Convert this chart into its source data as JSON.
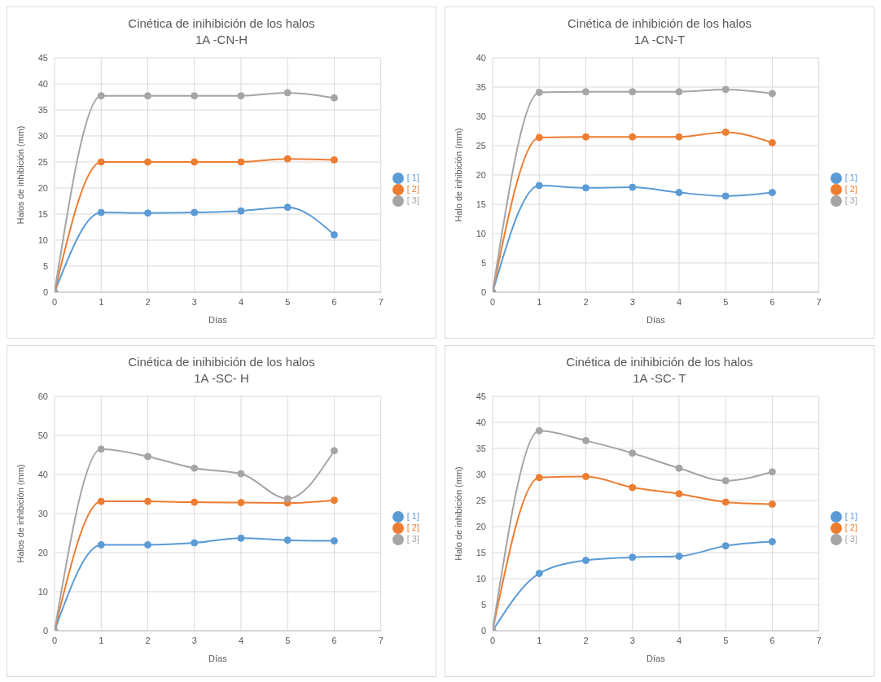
{
  "chart_data": [
    {
      "type": "line",
      "title": "Cinética de inihibición de los halos",
      "subtitle": "1A -CN-H",
      "xlabel": "Días",
      "ylabel": "Halos de inhibición (mm)",
      "x": [
        0,
        1,
        2,
        3,
        4,
        5,
        6
      ],
      "xlim": [
        0,
        7
      ],
      "xticks": [
        0,
        1,
        2,
        3,
        4,
        5,
        6,
        7
      ],
      "ylim": [
        0,
        45
      ],
      "yticks": [
        0,
        5,
        10,
        15,
        20,
        25,
        30,
        35,
        40,
        45
      ],
      "grid": true,
      "legend": "right",
      "marker": "circle",
      "line_style": "solid",
      "series": [
        {
          "name": "[ 1]",
          "color": "#5b9bd5",
          "values": [
            0,
            15.3,
            15.2,
            15.3,
            15.6,
            16.3,
            11
          ]
        },
        {
          "name": "[ 2]",
          "color": "#ed7d31",
          "values": [
            0,
            25,
            25,
            25,
            25,
            25.6,
            25.4
          ]
        },
        {
          "name": "[ 3]",
          "color": "#a5a5a5",
          "values": [
            0,
            37.7,
            37.7,
            37.7,
            37.7,
            38.3,
            37.3
          ]
        }
      ]
    },
    {
      "type": "line",
      "title": "Cinética de inhibición de los halos",
      "subtitle": "1A -CN-T",
      "xlabel": "Días",
      "ylabel": "Halo de inhibición (mm)",
      "x": [
        0,
        1,
        2,
        3,
        4,
        5,
        6
      ],
      "xlim": [
        0,
        7
      ],
      "xticks": [
        0,
        1,
        2,
        3,
        4,
        5,
        6,
        7
      ],
      "ylim": [
        0,
        40
      ],
      "yticks": [
        0,
        5,
        10,
        15,
        20,
        25,
        30,
        35,
        40
      ],
      "grid": true,
      "legend": "right",
      "marker": "circle",
      "line_style": "solid",
      "series": [
        {
          "name": "[ 1]",
          "color": "#5b9bd5",
          "values": [
            0,
            18.2,
            17.8,
            17.9,
            17,
            16.4,
            17
          ]
        },
        {
          "name": "[ 2]",
          "color": "#ed7d31",
          "values": [
            0,
            26.4,
            26.5,
            26.5,
            26.5,
            27.3,
            25.5
          ]
        },
        {
          "name": "[ 3]",
          "color": "#a5a5a5",
          "values": [
            0,
            34.1,
            34.2,
            34.2,
            34.2,
            34.6,
            33.9
          ]
        }
      ]
    },
    {
      "type": "line",
      "title": "Cinética de inihibición de los halos",
      "subtitle": "1A -SC- H",
      "xlabel": "Días",
      "ylabel": "Halos de inhibición (mm)",
      "x": [
        0,
        1,
        2,
        3,
        4,
        5,
        6
      ],
      "xlim": [
        0,
        7
      ],
      "xticks": [
        0,
        1,
        2,
        3,
        4,
        5,
        6,
        7
      ],
      "ylim": [
        0,
        60
      ],
      "yticks": [
        0,
        10,
        20,
        30,
        40,
        50,
        60
      ],
      "grid": true,
      "legend": "right",
      "marker": "circle",
      "line_style": "solid",
      "series": [
        {
          "name": "[ 1]",
          "color": "#5b9bd5",
          "values": [
            0,
            22,
            22,
            22.5,
            23.7,
            23.2,
            23
          ]
        },
        {
          "name": "[ 2]",
          "color": "#ed7d31",
          "values": [
            0,
            33.1,
            33.1,
            32.9,
            32.8,
            32.7,
            33.4
          ]
        },
        {
          "name": "[ 3]",
          "color": "#a5a5a5",
          "values": [
            0,
            46.5,
            44.6,
            41.6,
            40.2,
            33.8,
            46.1
          ]
        }
      ]
    },
    {
      "type": "line",
      "title": "Cinética de inihibición de los halos",
      "subtitle": "1A -SC- T",
      "xlabel": "Días",
      "ylabel": "Halo de inhibición (mm)",
      "x": [
        0,
        1,
        2,
        3,
        4,
        5,
        6
      ],
      "xlim": [
        0,
        7
      ],
      "xticks": [
        0,
        1,
        2,
        3,
        4,
        5,
        6,
        7
      ],
      "ylim": [
        0,
        45
      ],
      "yticks": [
        0,
        5,
        10,
        15,
        20,
        25,
        30,
        35,
        40,
        45
      ],
      "grid": true,
      "legend": "right",
      "marker": "circle",
      "line_style": "solid",
      "series": [
        {
          "name": "[ 1]",
          "color": "#5b9bd5",
          "values": [
            0,
            11,
            13.5,
            14.1,
            14.3,
            16.3,
            17.1
          ]
        },
        {
          "name": "[ 2]",
          "color": "#ed7d31",
          "values": [
            0,
            29.4,
            29.6,
            27.5,
            26.3,
            24.7,
            24.3
          ]
        },
        {
          "name": "[ 3]",
          "color": "#a5a5a5",
          "values": [
            0,
            38.4,
            36.5,
            34.1,
            31.2,
            28.8,
            30.5
          ]
        }
      ]
    }
  ]
}
